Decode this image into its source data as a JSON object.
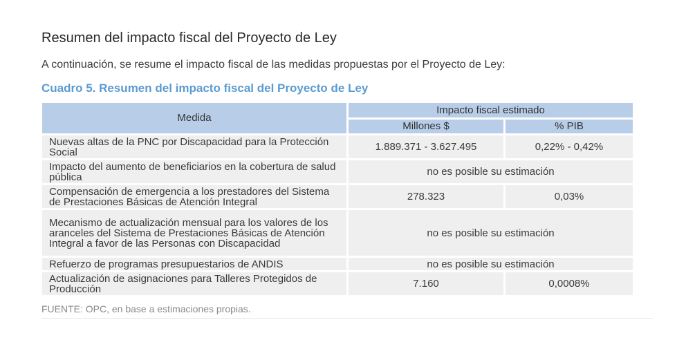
{
  "heading": "Resumen del impacto fiscal del Proyecto de Ley",
  "intro": "A continuación, se resume el impacto fiscal de las medidas propuestas por el Proyecto de Ley:",
  "caption": "Cuadro 5. Resumen del impacto fiscal del Proyecto de Ley",
  "table": {
    "header": {
      "medida": "Medida",
      "impacto": "Impacto fiscal estimado",
      "millones": "Millones $",
      "pib": "% PIB"
    },
    "rows": [
      {
        "medida": "Nuevas altas de la PNC por Discapacidad para la Protección Social",
        "millones": "1.889.371 - 3.627.495",
        "pib": "0,22% - 0,42%"
      },
      {
        "medida": "Impacto del aumento de beneficiarios en la cobertura de salud pública",
        "merged": "no es posible su estimación"
      },
      {
        "medida": "Compensación de emergencia a los prestadores del Sistema de Prestaciones Básicas de Atención Integral",
        "millones": "278.323",
        "pib": "0,03%"
      },
      {
        "medida": "Mecanismo de actualización mensual para los valores de los aranceles del Sistema de Prestaciones Básicas de Atención Integral a favor de las Personas con Discapacidad",
        "merged": "no es posible su estimación"
      },
      {
        "medida": "Refuerzo de programas presupuestarios de ANDIS",
        "merged": "no es posible su estimación"
      },
      {
        "medida": "Actualización de asignaciones para Talleres Protegidos de Producción",
        "millones": "7.160",
        "pib": "0,0008%"
      }
    ]
  },
  "source": "FUENTE: OPC, en base a estimaciones propias.",
  "colors": {
    "caption": "#5b9bd0",
    "header_bg": "#b8cee8",
    "cell_bg": "#efefef",
    "source_text": "#8a8a8a"
  }
}
